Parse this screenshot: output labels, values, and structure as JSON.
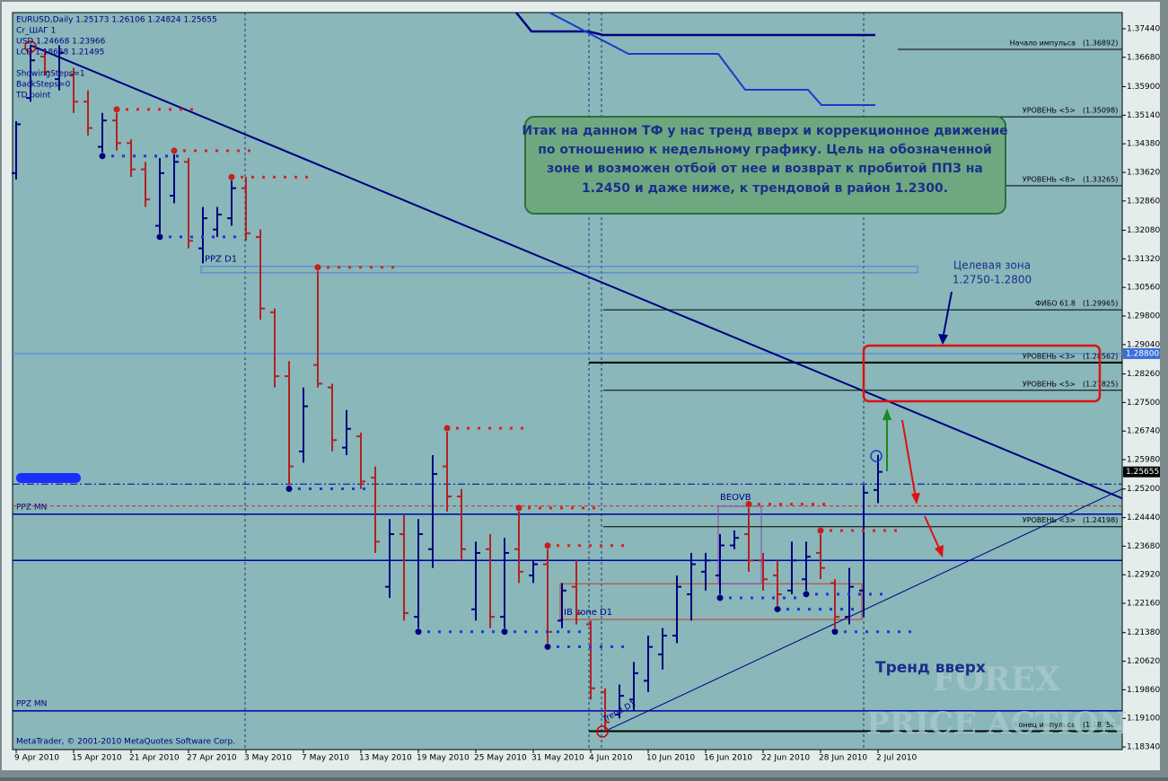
{
  "header": "EURUSD,Daily 1.25173 1.26106 1.24824 1.25655",
  "indicator_text": [
    "Cr_ШАГ 1",
    "USD 1.24668 1.23966",
    "LCD 1.18658 1.21495",
    "ShowingSteps=1",
    "BackSteps=0",
    "TD point"
  ],
  "copyright": "MetaTrader, © 2001-2010 MetaQuotes Software Corp.",
  "comment": [
    "Итак на данном ТФ у нас тренд вверх и коррекционное движение",
    "по отношению к недельному графику.  Цель на обозначенной",
    "зоне и возможен отбой от нее и возврат к пробитой ППЗ на",
    "1.2450 и даже ниже, к трендовой в район 1.2300."
  ],
  "target_zone": [
    "Целевая зона",
    "1.2750-1.2800"
  ],
  "trend_label": "Тренд вверх",
  "trend_d1": "Trend D1",
  "watermark": [
    "FOREX",
    "PRICE ACTION"
  ],
  "chart_data": {
    "type": "ohlc",
    "categories": [
      "9 Apr 2010",
      null,
      null,
      null,
      "15 Apr 2010",
      null,
      null,
      null,
      "21 Apr 2010",
      null,
      null,
      null,
      "27 Apr 2010",
      null,
      null,
      null,
      "3 May 2010",
      null,
      null,
      null,
      "7 May 2010",
      null,
      null,
      null,
      "13 May 2010",
      null,
      null,
      null,
      "19 May 2010",
      null,
      null,
      null,
      "25 May 2010",
      null,
      null,
      null,
      "31 May 2010",
      null,
      null,
      null,
      "4 Jun 2010",
      null,
      null,
      null,
      "10 Jun 2010",
      null,
      null,
      null,
      "16 Jun 2010",
      null,
      null,
      null,
      "22 Jun 2010",
      null,
      null,
      null,
      "28 Jun 2010",
      null,
      null,
      null,
      "2 Jul 2010"
    ],
    "open": [
      1.336,
      1.356,
      1.367,
      1.361,
      1.362,
      1.355,
      1.343,
      1.35,
      1.344,
      1.337,
      1.322,
      1.33,
      1.339,
      1.316,
      1.321,
      1.324,
      1.332,
      1.319,
      1.299,
      1.282,
      1.262,
      1.285,
      1.279,
      1.263,
      1.266,
      1.255,
      1.226,
      1.24,
      1.218,
      1.236,
      1.258,
      1.25,
      1.22,
      1.236,
      1.218,
      1.236,
      1.229,
      1.232,
      1.217,
      1.226,
      1.216,
      1.198,
      1.192,
      1.196,
      1.201,
      1.208,
      1.213,
      1.224,
      1.23,
      1.229,
      1.237,
      1.24,
      1.233,
      1.229,
      1.225,
      1.228,
      1.235,
      1.227,
      1.218,
      1.225,
      1.25173
    ],
    "high": [
      1.3498,
      1.37,
      1.369,
      1.37,
      1.364,
      1.358,
      1.352,
      1.352,
      1.345,
      1.339,
      1.34,
      1.341,
      1.34,
      1.327,
      1.327,
      1.334,
      1.335,
      1.321,
      1.3,
      1.286,
      1.279,
      1.31,
      1.28,
      1.273,
      1.267,
      1.258,
      1.244,
      1.245,
      1.244,
      1.261,
      1.2672,
      1.252,
      1.238,
      1.24,
      1.239,
      1.246,
      1.233,
      1.236,
      1.227,
      1.233,
      1.217,
      1.199,
      1.2,
      1.206,
      1.213,
      1.215,
      1.229,
      1.235,
      1.235,
      1.24,
      1.241,
      1.247,
      1.235,
      1.233,
      1.238,
      1.238,
      1.24,
      1.228,
      1.231,
      1.253,
      1.26106
    ],
    "low": [
      1.3343,
      1.355,
      1.362,
      1.358,
      1.352,
      1.346,
      1.3415,
      1.342,
      1.335,
      1.327,
      1.32,
      1.328,
      1.316,
      1.312,
      1.319,
      1.322,
      1.318,
      1.297,
      1.279,
      1.253,
      1.259,
      1.279,
      1.262,
      1.261,
      1.252,
      1.235,
      1.223,
      1.217,
      1.215,
      1.231,
      1.246,
      1.233,
      1.217,
      1.215,
      1.215,
      1.227,
      1.227,
      1.211,
      1.215,
      1.216,
      1.196,
      1.1876,
      1.191,
      1.193,
      1.198,
      1.204,
      1.211,
      1.217,
      1.225,
      1.224,
      1.236,
      1.23,
      1.225,
      1.221,
      1.224,
      1.225,
      1.228,
      1.215,
      1.216,
      1.218,
      1.24824
    ],
    "close": [
      1.349,
      1.366,
      1.363,
      1.368,
      1.355,
      1.348,
      1.35,
      1.344,
      1.337,
      1.329,
      1.336,
      1.339,
      1.318,
      1.324,
      1.325,
      1.332,
      1.32,
      1.3,
      1.282,
      1.258,
      1.274,
      1.28,
      1.265,
      1.268,
      1.254,
      1.238,
      1.24,
      1.219,
      1.24,
      1.256,
      1.25,
      1.236,
      1.235,
      1.218,
      1.235,
      1.23,
      1.232,
      1.214,
      1.225,
      1.219,
      1.199,
      1.19,
      1.197,
      1.203,
      1.21,
      1.213,
      1.226,
      1.232,
      1.233,
      1.237,
      1.239,
      1.233,
      1.228,
      1.224,
      1.233,
      1.234,
      1.231,
      1.218,
      1.226,
      1.251,
      1.25655
    ],
    "up_color": "#00007f",
    "down_color": "#b22222",
    "ylim": [
      1.1827,
      1.3787
    ],
    "yticks": [
      {
        "value": 1.3744,
        "label": "1.37440"
      },
      {
        "value": 1.3668,
        "label": "1.36680"
      },
      {
        "value": 1.359,
        "label": "1.35900"
      },
      {
        "value": 1.3514,
        "label": "1.35140"
      },
      {
        "value": 1.3438,
        "label": "1.34380"
      },
      {
        "value": 1.3362,
        "label": "1.33620"
      },
      {
        "value": 1.3286,
        "label": "1.32860"
      },
      {
        "value": 1.3208,
        "label": "1.32080"
      },
      {
        "value": 1.3132,
        "label": "1.31320"
      },
      {
        "value": 1.3056,
        "label": "1.30560"
      },
      {
        "value": 1.298,
        "label": "1.29800"
      },
      {
        "value": 1.2904,
        "label": "1.29040"
      },
      {
        "value": 1.2826,
        "label": "1.28260"
      },
      {
        "value": 1.275,
        "label": "1.27500"
      },
      {
        "value": 1.2674,
        "label": "1.26740"
      },
      {
        "value": 1.2598,
        "label": "1.25980"
      },
      {
        "value": 1.252,
        "label": "1.25200"
      },
      {
        "value": 1.2444,
        "label": "1.24440"
      },
      {
        "value": 1.2368,
        "label": "1.23680"
      },
      {
        "value": 1.2292,
        "label": "1.22920"
      },
      {
        "value": 1.2216,
        "label": "1.22160"
      },
      {
        "value": 1.2138,
        "label": "1.21380"
      },
      {
        "value": 1.2062,
        "label": "1.20620"
      },
      {
        "value": 1.1986,
        "label": "1.19860"
      },
      {
        "value": 1.191,
        "label": "1.19100"
      },
      {
        "value": 1.1834,
        "label": "1.18340"
      }
    ],
    "price_badges": [
      {
        "value": 1.288,
        "label": "1.28800",
        "color": "#3b6fd8"
      },
      {
        "value": 1.25655,
        "label": "1.25655",
        "color": "#000000"
      }
    ],
    "levels": {
      "names": [
        "Начало импульса",
        "УРОВЕНЬ <5>",
        "УРОВЕНЬ <8>",
        "ФИБО 61.8",
        "УРОВЕНЬ <3>",
        "УРОВЕНЬ <5>",
        "УРОВЕНЬ <3>",
        "Конец импульса"
      ],
      "values": [
        1.36892,
        1.35098,
        1.33265,
        1.29965,
        1.28562,
        1.27825,
        1.24198,
        1.18758
      ],
      "value_labels": [
        "(1.36892)",
        "(1.35098)",
        "(1.33265)",
        "(1.29965)",
        "(1.28562)",
        "(1.27825)",
        "(1.24198)",
        "(1.18758)"
      ]
    },
    "hlines": [
      {
        "value": 1.2453,
        "label": "PPZ MN",
        "color": "#0000a0"
      },
      {
        "value": 1.233,
        "color": "#0000a0"
      },
      {
        "value": 1.193,
        "label": "PPZ MN",
        "color": "#0000a0"
      },
      {
        "value": 1.288,
        "color": "#5b8fe0"
      },
      {
        "value": 1.2533,
        "color": "#0000a0",
        "dash": "dashdot"
      },
      {
        "value": 1.2475,
        "color": "#e02020",
        "dash": "dash"
      }
    ],
    "zones": [
      {
        "label": "PPZ D1",
        "range": [
          1.3095,
          1.3112
        ],
        "color": "#4a7fd4"
      },
      {
        "label": "IB zone D1",
        "range": [
          1.2173,
          1.2268
        ],
        "color": "#c0392b"
      },
      {
        "label": "BEOVB",
        "range": [
          1.2268,
          1.2474
        ],
        "color": "#8e44ad"
      }
    ],
    "trendlines": [
      {
        "points": [
          [
            1,
            1.37
          ],
          [
            77,
            1.2495
          ]
        ],
        "color": "#00007f",
        "width": 2
      },
      {
        "points": [
          [
            41,
            1.1876
          ],
          [
            77,
            1.252
          ]
        ],
        "color": "#00007f",
        "width": 1
      }
    ],
    "fractals_up": [
      7,
      11,
      15,
      21,
      30,
      35,
      37,
      51,
      56
    ],
    "fractals_down": [
      6,
      10,
      19,
      28,
      34,
      37,
      49,
      53,
      55,
      57
    ]
  }
}
